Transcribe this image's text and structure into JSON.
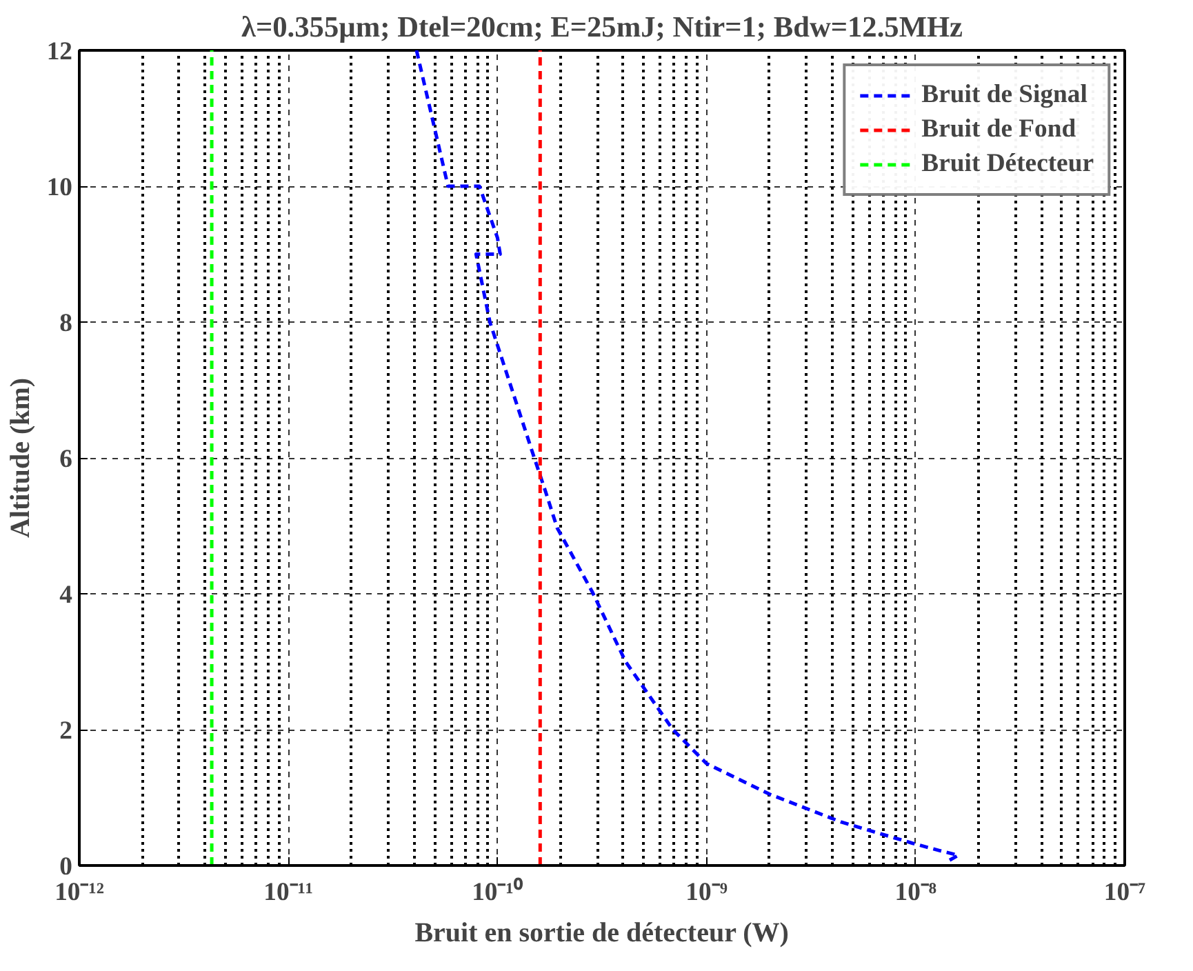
{
  "chart_data": {
    "type": "line",
    "title": "λ=0.355µm; Dtel=20cm; E=25mJ; Ntir=1; Bdw=12.5MHz",
    "xlabel": "Bruit en sortie de détecteur (W)",
    "ylabel": "Altitude (km)",
    "log": "x",
    "grid": true,
    "legend": "top right",
    "line_style": "dashed",
    "marker": "none",
    "xlim": [
      1e-12,
      1e-07
    ],
    "ylim": [
      0,
      12
    ],
    "xticks": [
      {
        "value": 1e-12,
        "label": "10⁻¹²"
      },
      {
        "value": 1e-11,
        "label": "10⁻¹¹"
      },
      {
        "value": 1e-10,
        "label": "10⁻¹⁰"
      },
      {
        "value": 1e-09,
        "label": "10⁻⁹"
      },
      {
        "value": 1e-08,
        "label": "10⁻⁸"
      },
      {
        "value": 1e-07,
        "label": "10⁻⁷"
      }
    ],
    "yticks": [
      0,
      2,
      4,
      6,
      8,
      10,
      12
    ],
    "series": [
      {
        "name": "Bruit de Signal",
        "color": "#0000ff",
        "x": [
          4.1e-11,
          5.8e-11,
          8.2e-11,
          1e-10,
          1.03e-10,
          7.9e-11,
          9.2e-11,
          1.5e-10,
          1.7e-10,
          1.93e-10,
          2.85e-10,
          4.1e-10,
          6.9e-10,
          1e-09,
          2e-09,
          4.4e-09,
          9.6e-09,
          1.3e-08,
          1.6e-08,
          1.4e-08
        ],
        "values": [
          12,
          10,
          10,
          9.24,
          9.0,
          9.0,
          8,
          6,
          5.5,
          4.97,
          4.02,
          3.0,
          2.0,
          1.5,
          1.05,
          0.64,
          0.33,
          0.22,
          0.15,
          0.05
        ]
      },
      {
        "name": "Bruit de Fond",
        "color": "#ff0000",
        "x": [
          1.6e-10,
          1.6e-10
        ],
        "values": [
          0,
          12
        ]
      },
      {
        "name": "Bruit Détecteur",
        "color": "#00ff00",
        "x": [
          4.3e-12,
          4.3e-12
        ],
        "values": [
          0,
          12
        ]
      }
    ]
  }
}
